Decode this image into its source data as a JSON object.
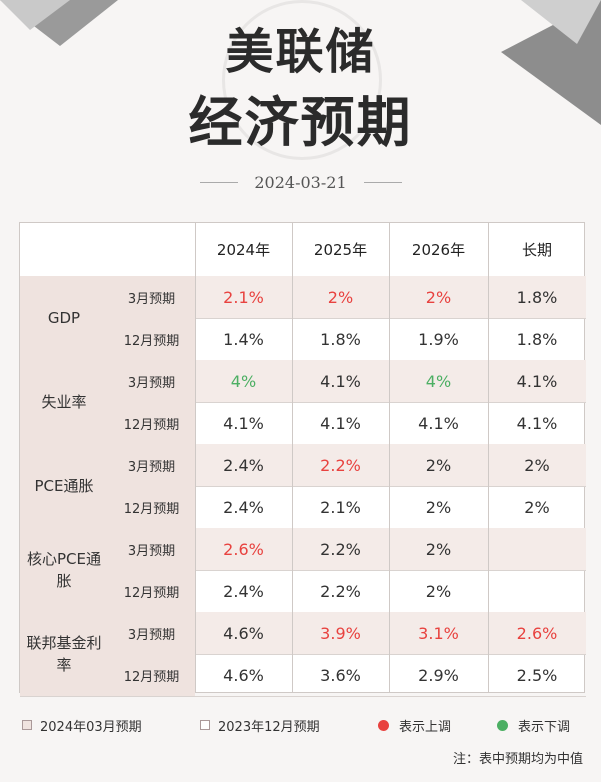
{
  "title_line1": "美联储",
  "title_line2": "经济预期",
  "date": "2024-03-21",
  "columns": [
    "2024年",
    "2025年",
    "2026年",
    "长期"
  ],
  "groups": [
    {
      "name": "GDP",
      "rows": [
        {
          "label": "3月预期",
          "values": [
            "2.1%",
            "2%",
            "2%",
            "1.8%"
          ],
          "change": [
            "up",
            "up",
            "up",
            ""
          ]
        },
        {
          "label": "12月预期",
          "values": [
            "1.4%",
            "1.8%",
            "1.9%",
            "1.8%"
          ],
          "change": [
            "",
            "",
            "",
            ""
          ]
        }
      ]
    },
    {
      "name": "失业率",
      "rows": [
        {
          "label": "3月预期",
          "values": [
            "4%",
            "4.1%",
            "4%",
            "4.1%"
          ],
          "change": [
            "down",
            "",
            "down",
            ""
          ]
        },
        {
          "label": "12月预期",
          "values": [
            "4.1%",
            "4.1%",
            "4.1%",
            "4.1%"
          ],
          "change": [
            "",
            "",
            "",
            ""
          ]
        }
      ]
    },
    {
      "name": "PCE通胀",
      "rows": [
        {
          "label": "3月预期",
          "values": [
            "2.4%",
            "2.2%",
            "2%",
            "2%"
          ],
          "change": [
            "",
            "up",
            "",
            ""
          ]
        },
        {
          "label": "12月预期",
          "values": [
            "2.4%",
            "2.1%",
            "2%",
            "2%"
          ],
          "change": [
            "",
            "",
            "",
            ""
          ]
        }
      ]
    },
    {
      "name": "核心PCE通胀",
      "rows": [
        {
          "label": "3月预期",
          "values": [
            "2.6%",
            "2.2%",
            "2%",
            ""
          ],
          "change": [
            "up",
            "",
            "",
            ""
          ]
        },
        {
          "label": "12月预期",
          "values": [
            "2.4%",
            "2.2%",
            "2%",
            ""
          ],
          "change": [
            "",
            "",
            "",
            ""
          ]
        }
      ]
    },
    {
      "name": "联邦基金利率",
      "rows": [
        {
          "label": "3月预期",
          "values": [
            "4.6%",
            "3.9%",
            "3.1%",
            "2.6%"
          ],
          "change": [
            "",
            "up",
            "up",
            "up"
          ]
        },
        {
          "label": "12月预期",
          "values": [
            "4.6%",
            "3.6%",
            "2.9%",
            "2.5%"
          ],
          "change": [
            "",
            "",
            "",
            ""
          ]
        }
      ]
    }
  ],
  "legend": {
    "march": "2024年03月预期",
    "december": "2023年12月预期",
    "up": "表示上调",
    "down": "表示下调"
  },
  "note": "注：表中预期均为中值",
  "colors": {
    "up": "#e8423f",
    "down": "#4caf63",
    "highlight": "#efe3df"
  }
}
